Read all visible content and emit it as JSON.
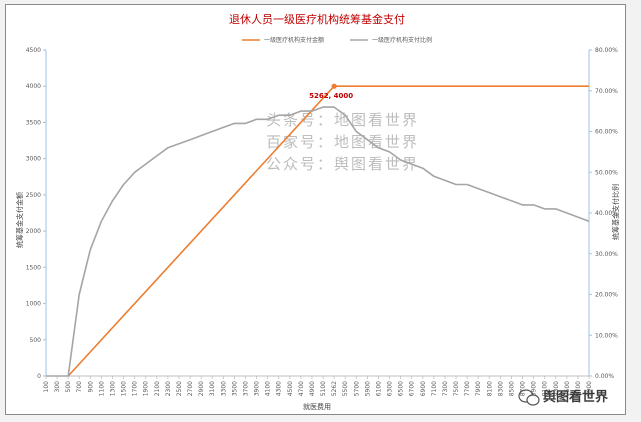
{
  "colors": {
    "orange": "#ed7d31",
    "gray": "#a5a5a5",
    "title": "#c00000",
    "grid": "#d9d9d9"
  },
  "watermark": [
    "头条号：地图看世界",
    "百家号：地图看世界",
    "公众号：舆图看世界"
  ],
  "brand": {
    "icon": "wechat-icon",
    "label": "舆图看世界"
  },
  "chart_data": {
    "type": "line",
    "title": "退休人员一级医疗机构统筹基金支付",
    "xlabel": "就医费用",
    "ylabel_left": "统筹基金支付金额",
    "ylabel_right": "统筹基金支付比例",
    "ylim_left": [
      0,
      4500
    ],
    "ylim_right": [
      0,
      0.8
    ],
    "yticks_left": [
      "0",
      "500",
      "1000",
      "1500",
      "2000",
      "2500",
      "3000",
      "3500",
      "4000",
      "4500"
    ],
    "yticks_right": [
      "0.00%",
      "10.00%",
      "20.00%",
      "30.00%",
      "40.00%",
      "50.00%",
      "60.00%",
      "70.00%",
      "80.00%"
    ],
    "xticks": [
      "100",
      "300",
      "500",
      "700",
      "900",
      "1100",
      "1300",
      "1500",
      "1700",
      "1900",
      "2100",
      "2300",
      "2500",
      "2700",
      "2900",
      "3100",
      "3300",
      "3500",
      "3700",
      "3900",
      "4100",
      "4300",
      "4500",
      "4700",
      "4900",
      "5100",
      "5262",
      "5500",
      "5700",
      "5900",
      "6100",
      "6300",
      "6500",
      "6700",
      "6900",
      "7100",
      "7300",
      "7500",
      "7700",
      "7900",
      "8100",
      "8300",
      "8500",
      "8700",
      "8900",
      "9100",
      "9300",
      "9500",
      "9700",
      "9900"
    ],
    "legend": {
      "position": "top-right"
    },
    "grid": false,
    "series": [
      {
        "name": "一级医疗机构支付金额",
        "axis": "left",
        "color": "#ed7d31",
        "x": [
          500,
          5262,
          9900
        ],
        "y": [
          0,
          4000,
          4000
        ]
      },
      {
        "name": "一级医疗机构支付比例",
        "axis": "right",
        "color": "#a5a5a5",
        "x": [
          100,
          300,
          500,
          700,
          900,
          1100,
          1300,
          1500,
          1700,
          1900,
          2100,
          2300,
          2500,
          2700,
          2900,
          3100,
          3300,
          3500,
          3700,
          3900,
          4100,
          4300,
          4500,
          4700,
          4900,
          5100,
          5262,
          5500,
          5700,
          5900,
          6100,
          6300,
          6500,
          6700,
          6900,
          7100,
          7300,
          7500,
          7700,
          7900,
          8100,
          8300,
          8500,
          8700,
          8900,
          9100,
          9300,
          9500,
          9700,
          9900
        ],
        "y": [
          0,
          0,
          0,
          0.2,
          0.31,
          0.38,
          0.43,
          0.47,
          0.5,
          0.52,
          0.54,
          0.56,
          0.57,
          0.58,
          0.59,
          0.6,
          0.61,
          0.62,
          0.62,
          0.63,
          0.63,
          0.64,
          0.64,
          0.65,
          0.65,
          0.66,
          0.66,
          0.64,
          0.6,
          0.58,
          0.56,
          0.55,
          0.53,
          0.52,
          0.51,
          0.49,
          0.48,
          0.47,
          0.47,
          0.46,
          0.45,
          0.44,
          0.43,
          0.42,
          0.42,
          0.41,
          0.41,
          0.4,
          0.39,
          0.38
        ]
      }
    ],
    "annotations": [
      {
        "text": "5262, 4000",
        "x": 5262,
        "y": 4000
      }
    ]
  }
}
